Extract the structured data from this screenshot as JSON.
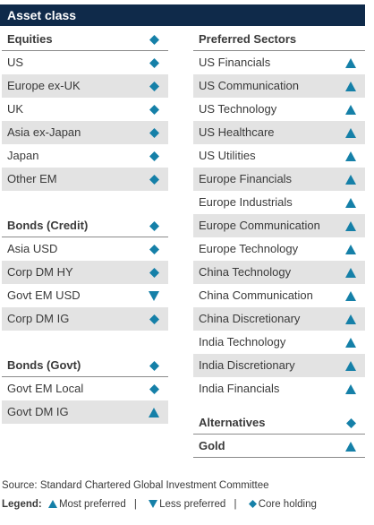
{
  "title": "Asset class",
  "colors": {
    "accent": "#1580a8",
    "header_bg": "#0f2a4a",
    "shade": "#e3e3e3"
  },
  "left": [
    {
      "label": "Equities",
      "symbol": "core",
      "header": true
    },
    {
      "label": "US",
      "symbol": "core"
    },
    {
      "label": "Europe ex-UK",
      "symbol": "core",
      "shade": true
    },
    {
      "label": "UK",
      "symbol": "core"
    },
    {
      "label": "Asia ex-Japan",
      "symbol": "core",
      "shade": true
    },
    {
      "label": "Japan",
      "symbol": "core"
    },
    {
      "label": "Other EM",
      "symbol": "core",
      "shade": true
    },
    {
      "gap": true
    },
    {
      "label": "Bonds (Credit)",
      "symbol": "core",
      "header": true
    },
    {
      "label": "Asia USD",
      "symbol": "core"
    },
    {
      "label": "Corp DM HY",
      "symbol": "core",
      "shade": true
    },
    {
      "label": "Govt EM USD",
      "symbol": "less"
    },
    {
      "label": "Corp DM IG",
      "symbol": "core",
      "shade": true
    },
    {
      "gap": true
    },
    {
      "label": "Bonds (Govt)",
      "symbol": "core",
      "header": true
    },
    {
      "label": "Govt EM Local",
      "symbol": "core"
    },
    {
      "label": "Govt DM IG",
      "symbol": "most",
      "shade": true
    }
  ],
  "right": [
    {
      "label": "Preferred Sectors",
      "header": true
    },
    {
      "label": "US Financials",
      "symbol": "most"
    },
    {
      "label": "US Communication",
      "symbol": "most",
      "shade": true
    },
    {
      "label": "US Technology",
      "symbol": "most"
    },
    {
      "label": "US Healthcare",
      "symbol": "most",
      "shade": true
    },
    {
      "label": "US Utilities",
      "symbol": "most"
    },
    {
      "label": "Europe Financials",
      "symbol": "most",
      "shade": true
    },
    {
      "label": "Europe Industrials",
      "symbol": "most"
    },
    {
      "label": "Europe Communication",
      "symbol": "most",
      "shade": true
    },
    {
      "label": "Europe Technology",
      "symbol": "most"
    },
    {
      "label": "China Technology",
      "symbol": "most",
      "shade": true
    },
    {
      "label": "China Communication",
      "symbol": "most"
    },
    {
      "label": "China Discretionary",
      "symbol": "most",
      "shade": true
    },
    {
      "label": "India Technology",
      "symbol": "most"
    },
    {
      "label": "India Discretionary",
      "symbol": "most",
      "shade": true
    },
    {
      "label": "India Financials",
      "symbol": "most"
    },
    {
      "gap_small": true
    },
    {
      "label": "Alternatives",
      "symbol": "core",
      "header": true
    },
    {
      "label": "Gold",
      "symbol": "most",
      "header": true
    }
  ],
  "source": "Source: Standard Chartered Global Investment Committee",
  "legend": {
    "label": "Legend:",
    "most": "Most preferred",
    "less": "Less preferred",
    "core": "Core holding"
  }
}
